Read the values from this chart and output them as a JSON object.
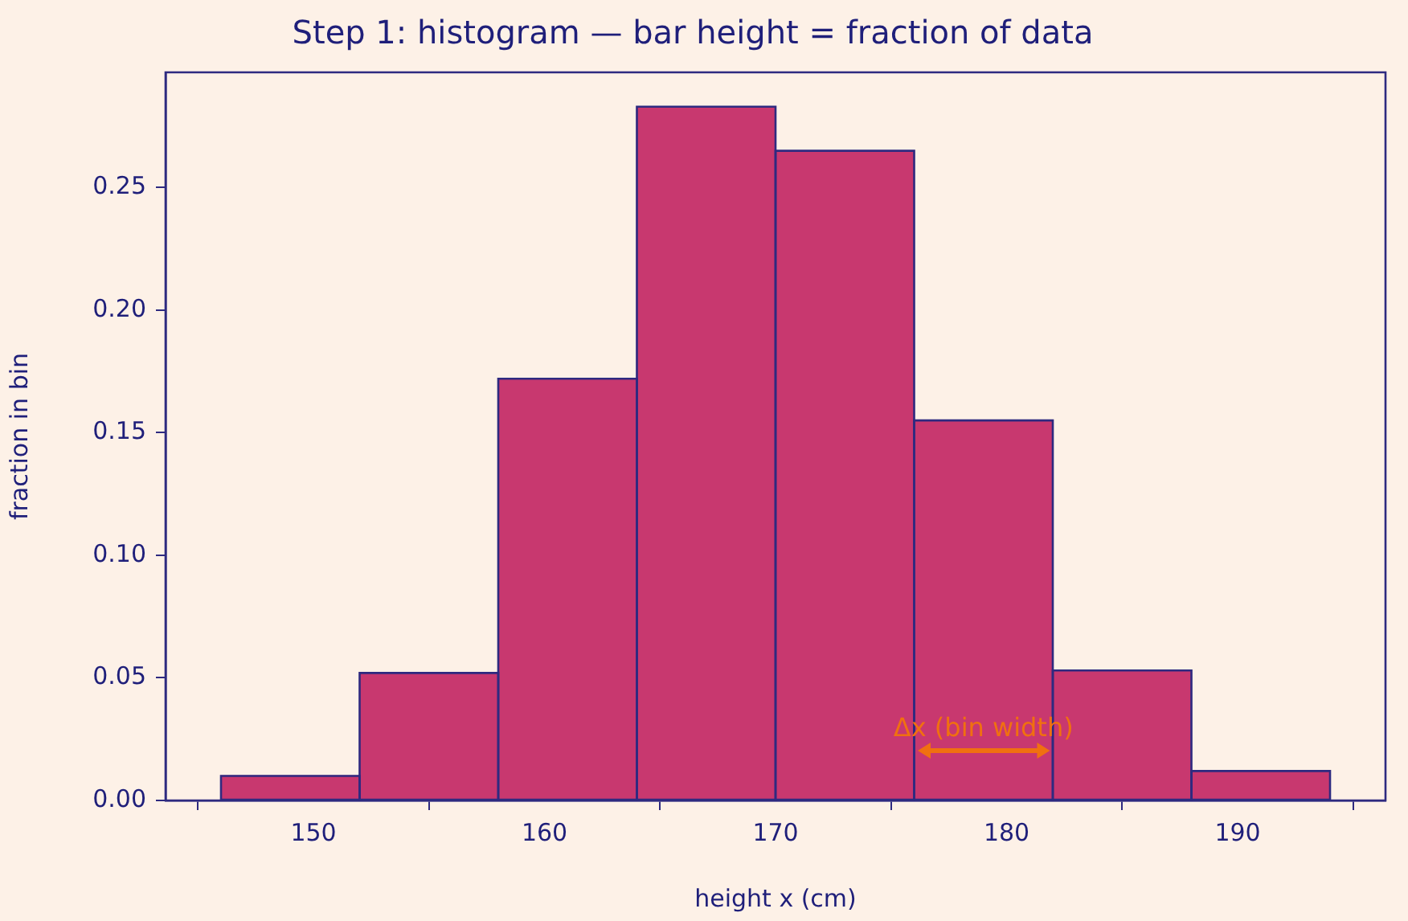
{
  "chart_data": {
    "type": "histogram",
    "title": "Step 1: histogram — bar height = fraction of data",
    "xlabel": "height x (cm)",
    "ylabel": "fraction in bin",
    "bins": [
      146,
      152,
      158,
      164,
      170,
      176,
      182,
      188,
      194
    ],
    "values": [
      0.01,
      0.052,
      0.172,
      0.283,
      0.265,
      0.155,
      0.053,
      0.012
    ],
    "color": "#c8386f",
    "xlim": [
      143.6,
      196.4
    ],
    "xticks": [
      150,
      160,
      170,
      180,
      190
    ],
    "ylim": [
      0,
      0.297
    ],
    "yticks": [
      {
        "value": 0,
        "label": "0.00"
      },
      {
        "value": 0.05,
        "label": "0.05"
      },
      {
        "value": 0.1,
        "label": "0.10"
      },
      {
        "value": 0.15,
        "label": "0.15"
      },
      {
        "value": 0.2,
        "label": "0.20"
      },
      {
        "value": 0.25,
        "label": "0.25"
      }
    ],
    "annotations": [
      "Δx (bin width)"
    ],
    "grid": false,
    "legend": false
  }
}
